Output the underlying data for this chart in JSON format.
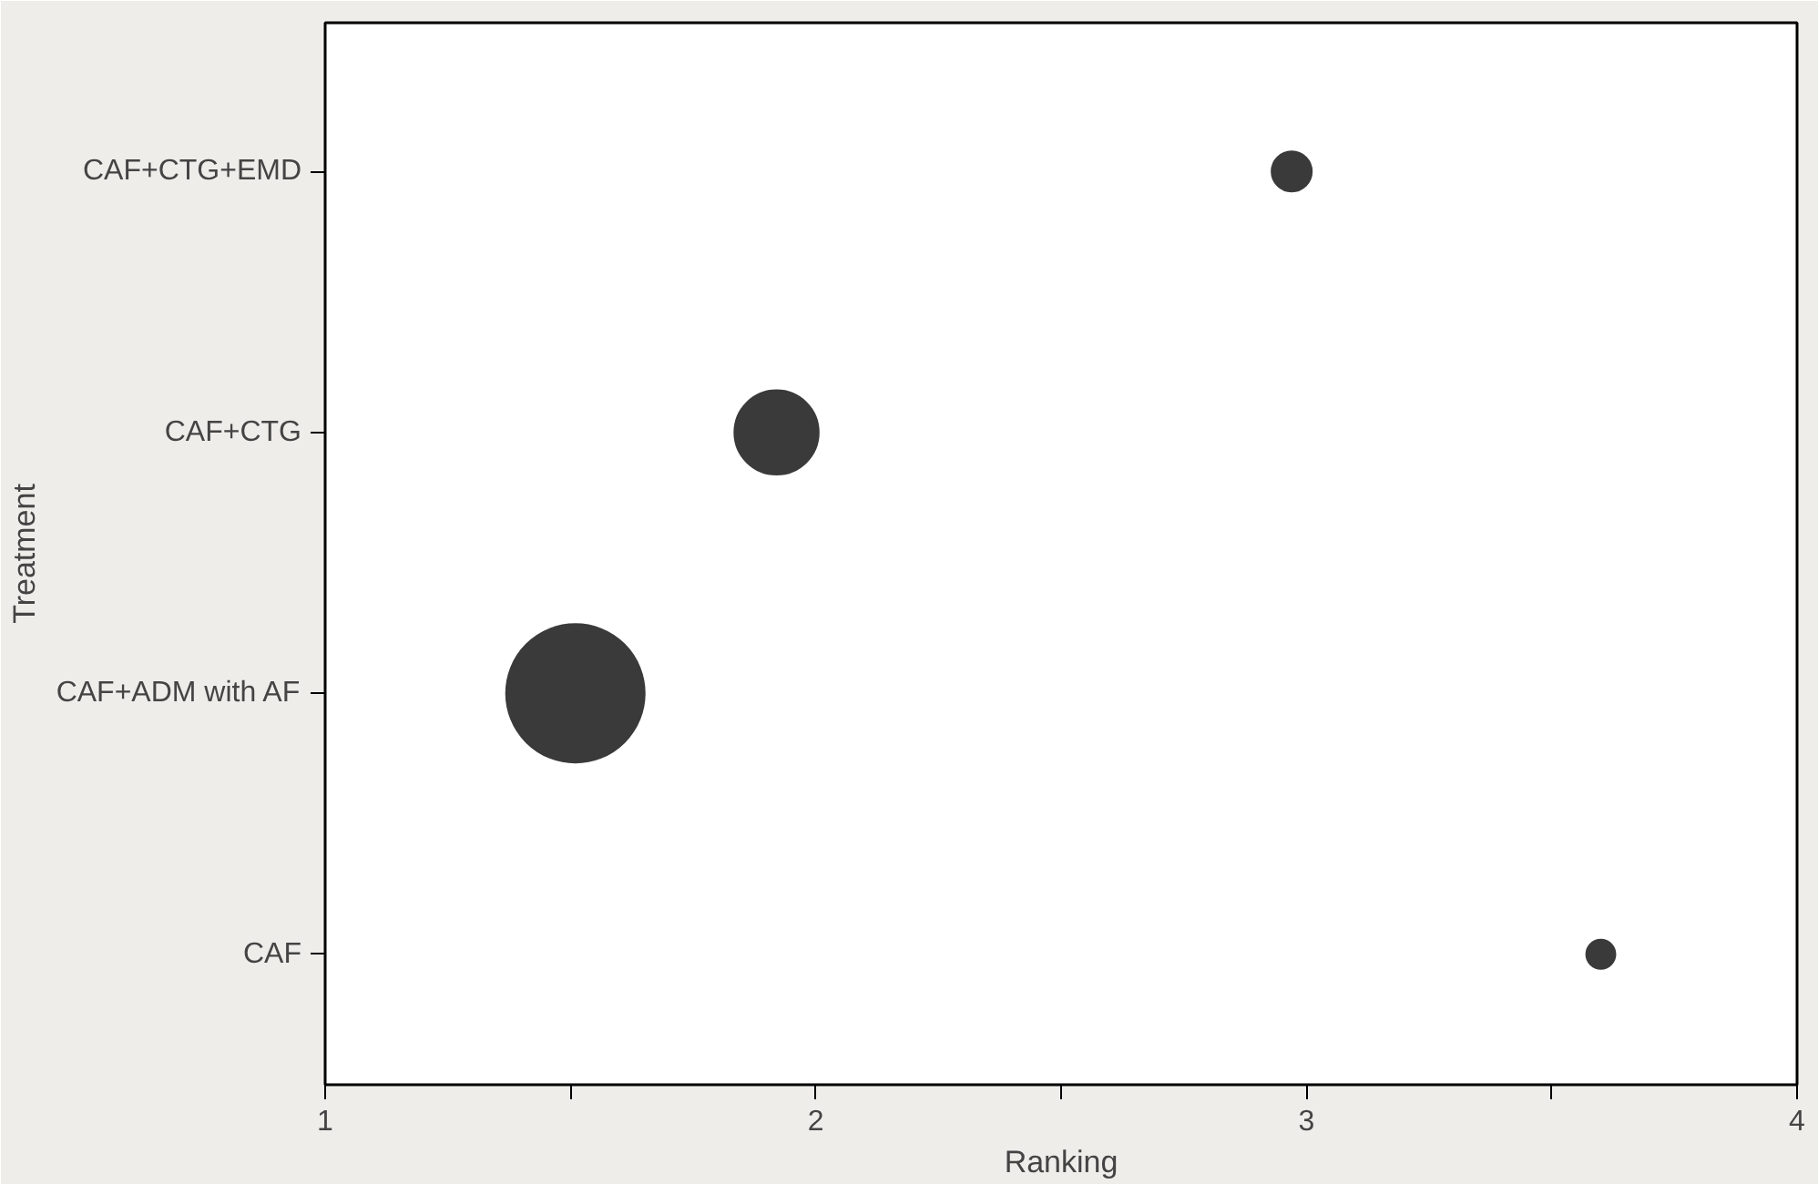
{
  "chart_data": {
    "type": "bubble",
    "orientation": "horizontal",
    "xlabel": "Ranking",
    "ylabel": "Treatment",
    "categories": [
      "CAF+CTG+EMD",
      "CAF+CTG",
      "CAF+ADM with AF",
      "CAF"
    ],
    "values": [
      2.97,
      1.92,
      1.51,
      3.6
    ],
    "sizes": [
      0.084,
      0.37,
      1,
      0.044
    ],
    "color": "#3a3a3a",
    "xlim": [
      1,
      4
    ],
    "xticks": [
      1,
      {
        "value": 1.5,
        "label": null
      },
      2,
      {
        "value": 2.5,
        "label": null
      },
      3,
      {
        "value": 3.5,
        "label": null
      },
      4
    ],
    "grid": false
  }
}
